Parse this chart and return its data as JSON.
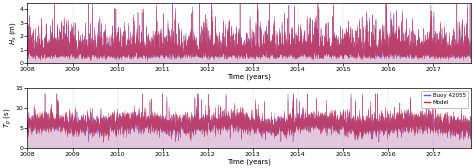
{
  "panel1": {
    "ylabel": "H_s (m)",
    "ylim": [
      0,
      4.5
    ],
    "yticks": [
      0,
      1,
      2,
      3,
      4
    ],
    "xlabel": "Time (years)"
  },
  "panel2": {
    "ylabel": "T_p (s)",
    "ylim": [
      0,
      15
    ],
    "yticks": [
      0,
      5,
      10,
      15
    ],
    "xlabel": "Time (years)"
  },
  "xlim_start": 2008.0,
  "xlim_end": 2017.85,
  "xticks": [
    2008,
    2009,
    2010,
    2011,
    2012,
    2013,
    2014,
    2015,
    2016,
    2017
  ],
  "color_buoy": "#5555FF",
  "color_buoy_alpha": 0.75,
  "color_model": "#DD2222",
  "color_model_alpha": 0.65,
  "legend_labels": [
    "Buoy 42055",
    "Model"
  ],
  "background_color": "#FFFFFF",
  "seed": 7
}
